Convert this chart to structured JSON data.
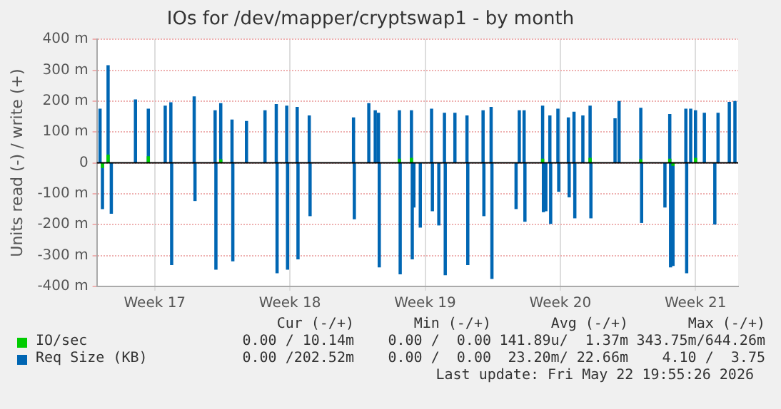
{
  "chart_data": {
    "type": "bar",
    "title": "IOs for /dev/mapper/cryptswap1 - by month",
    "ylabel": "Units read (-) / write (+)",
    "xlim": [
      "2026-04-19T15:00",
      "2026-05-22T20:00"
    ],
    "xticks": [
      {
        "value": "2026-04-22T15:00",
        "label": "Week 17"
      },
      {
        "value": "2026-04-29T15:00",
        "label": "Week 18"
      },
      {
        "value": "2026-05-06T15:00",
        "label": "Week 19"
      },
      {
        "value": "2026-05-13T15:00",
        "label": "Week 20"
      },
      {
        "value": "2026-05-20T15:00",
        "label": "Week 21"
      }
    ],
    "ylim": [
      -400,
      400
    ],
    "yticks": [
      {
        "value": -400,
        "label": "-400 m"
      },
      {
        "value": -300,
        "label": "-300 m"
      },
      {
        "value": -200,
        "label": "-200 m"
      },
      {
        "value": -100,
        "label": "-100 m"
      },
      0,
      {
        "value": 100,
        "label": "100 m"
      },
      {
        "value": 200,
        "label": "200 m"
      },
      {
        "value": 300,
        "label": "300 m"
      },
      {
        "value": 400,
        "label": "400 m"
      }
    ],
    "grid": true,
    "legend": "bottom",
    "ref_lines": [
      {
        "axis": "y",
        "value": 0,
        "color": "#000000"
      }
    ],
    "series": [
      {
        "name": "IO/sec",
        "color": "#00cc00",
        "x": [
          "2026-04-19T22:00",
          "2026-04-20T05:00",
          "2026-04-22T07:00",
          "2026-04-23T11:00",
          "2026-04-26T01:00",
          "2026-05-05T07:00",
          "2026-05-05T08:00",
          "2026-05-05T22:00",
          "2026-05-12T17:00",
          "2026-05-15T04:00",
          "2026-05-17T19:00",
          "2026-05-19T07:00",
          "2026-05-19T11:00",
          "2026-05-20T15:00"
        ],
        "values": [
          -15,
          25,
          20,
          null,
          10,
          12,
          null,
          15,
          12,
          15,
          10,
          12,
          -8,
          15
        ]
      },
      {
        "name": "Req Size (KB)",
        "color": "#0066b3",
        "x": [
          "2026-04-19T19:00",
          "2026-04-19T22:00",
          "2026-04-20T05:00",
          "2026-04-20T09:00",
          "2026-04-21T15:00",
          "2026-04-22T07:00",
          "2026-04-23T04:00",
          "2026-04-23T11:00",
          "2026-04-23T12:00",
          "2026-04-24T16:00",
          "2026-04-24T17:00",
          "2026-04-25T18:00",
          "2026-04-25T19:00",
          "2026-04-26T01:00",
          "2026-04-26T15:00",
          "2026-04-26T16:00",
          "2026-04-27T09:00",
          "2026-04-28T08:00",
          "2026-04-28T22:00",
          "2026-04-28T23:00",
          "2026-04-29T11:00",
          "2026-04-29T12:00",
          "2026-04-30T00:00",
          "2026-04-30T01:00",
          "2026-04-30T15:00",
          "2026-04-30T16:00",
          "2026-05-02T22:00",
          "2026-05-02T23:00",
          "2026-05-03T17:00",
          "2026-05-04T01:00",
          "2026-05-04T05:00",
          "2026-05-04T06:00",
          "2026-05-05T07:00",
          "2026-05-05T08:00",
          "2026-05-05T22:00",
          "2026-05-05T23:00",
          "2026-05-06T01:00",
          "2026-05-06T09:00",
          "2026-05-06T23:00",
          "2026-05-07T00:00",
          "2026-05-07T08:00",
          "2026-05-07T15:00",
          "2026-05-07T16:00",
          "2026-05-08T04:00",
          "2026-05-08T19:00",
          "2026-05-08T20:00",
          "2026-05-09T15:00",
          "2026-05-09T16:00",
          "2026-05-10T01:00",
          "2026-05-10T02:00",
          "2026-05-11T08:00",
          "2026-05-11T12:00",
          "2026-05-11T18:00",
          "2026-05-11T19:00",
          "2026-05-12T17:00",
          "2026-05-12T18:00",
          "2026-05-12T21:00",
          "2026-05-13T02:00",
          "2026-05-13T03:00",
          "2026-05-13T12:00",
          "2026-05-13T13:00",
          "2026-05-14T01:00",
          "2026-05-14T02:00",
          "2026-05-14T08:00",
          "2026-05-14T09:00",
          "2026-05-14T19:00",
          "2026-05-15T04:00",
          "2026-05-15T05:00",
          "2026-05-16T11:00",
          "2026-05-16T16:00",
          "2026-05-17T19:00",
          "2026-05-17T20:00",
          "2026-05-19T01:00",
          "2026-05-19T07:00",
          "2026-05-19T08:00",
          "2026-05-19T11:00",
          "2026-05-20T03:00",
          "2026-05-20T04:00",
          "2026-05-20T09:00",
          "2026-05-20T15:00",
          "2026-05-21T02:00",
          "2026-05-21T15:00",
          "2026-05-21T19:00",
          "2026-05-22T09:00",
          "2026-05-22T16:00"
        ],
        "values": [
          174,
          -148,
          315,
          -163,
          204,
          174,
          184,
          195,
          -329,
          214,
          -122,
          169,
          -344,
          192,
          139,
          -317,
          134,
          169,
          189,
          -356,
          184,
          -344,
          180,
          -311,
          152,
          -171,
          146,
          -181,
          192,
          169,
          161,
          -337,
          169,
          -359,
          169,
          -311,
          -143,
          -208,
          174,
          -155,
          -201,
          161,
          -362,
          161,
          152,
          -329,
          169,
          -171,
          180,
          -374,
          -148,
          169,
          169,
          -189,
          184,
          -158,
          -155,
          152,
          -196,
          174,
          -92,
          146,
          -110,
          164,
          -178,
          152,
          184,
          -178,
          143,
          199,
          177,
          -193,
          -143,
          157,
          -337,
          -332,
          174,
          -356,
          174,
          169,
          161,
          -198,
          161,
          196,
          199
        ]
      }
    ],
    "annotations": [
      "Cur (-/+)",
      "Min (-/+)",
      "Avg (-/+)",
      "Max (-/+)",
      "0.00 / 10.14m",
      "0.00 /  0.00",
      "141.89u/  1.37m",
      "343.75m/644.26m",
      "0.00 /202.52m",
      "0.00 /  0.00",
      "23.20m/ 22.66m",
      "4.10 /  3.75",
      "Last update: Fri May 22 19:55:26 2026"
    ]
  }
}
